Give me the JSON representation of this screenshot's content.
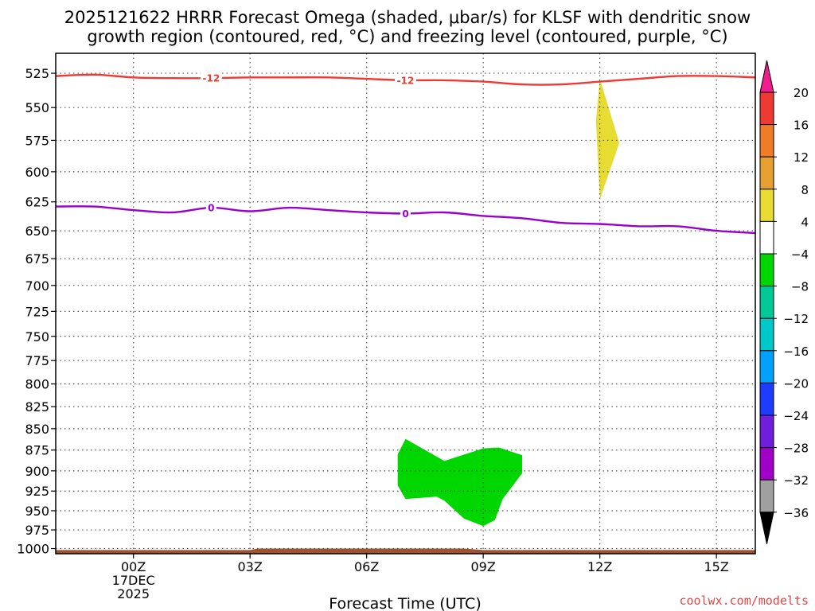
{
  "title_lines": [
    "2025121622 HRRR Forecast Omega (shaded, μbar/s) for KLSF with dendritic snow",
    "growth region (contoured, red, °C) and freezing level (contoured, purple, °C)"
  ],
  "credit": "coolwx.com/modelts",
  "colors": {
    "temp_contour": "#ee3a32",
    "freezing_contour": "#9900cc",
    "ground": "#a0522d",
    "neg_omega": "#00d600",
    "pos_omega": "#e6dc32"
  },
  "chart_data": {
    "type": "contour",
    "xlabel": "Forecast Time (UTC)",
    "x_range_hours": [
      -2,
      16
    ],
    "y_range_hpa": [
      1007,
      511
    ],
    "y_scale": "log-pressure",
    "grid": true,
    "x_ticks": [
      {
        "hour": 0,
        "lines": [
          "00Z",
          "17DEC",
          "2025"
        ]
      },
      {
        "hour": 3,
        "lines": [
          "03Z"
        ]
      },
      {
        "hour": 6,
        "lines": [
          "06Z"
        ]
      },
      {
        "hour": 9,
        "lines": [
          "09Z"
        ]
      },
      {
        "hour": 12,
        "lines": [
          "12Z"
        ]
      },
      {
        "hour": 15,
        "lines": [
          "15Z"
        ]
      }
    ],
    "y_ticks": [
      525,
      550,
      575,
      600,
      625,
      650,
      675,
      700,
      725,
      750,
      775,
      800,
      825,
      850,
      875,
      900,
      925,
      950,
      975,
      1000
    ],
    "contours": [
      {
        "name": "-12 °C isotherm",
        "level_label": "-12",
        "color_key": "temp_contour",
        "points": [
          [
            -2,
            527
          ],
          [
            -1,
            526
          ],
          [
            0,
            528
          ],
          [
            1,
            528.5
          ],
          [
            2,
            528.5
          ],
          [
            3,
            528
          ],
          [
            4,
            528
          ],
          [
            5,
            528
          ],
          [
            6,
            529
          ],
          [
            7,
            530
          ],
          [
            8,
            530
          ],
          [
            9,
            531
          ],
          [
            10,
            533
          ],
          [
            11,
            533
          ],
          [
            12,
            531
          ],
          [
            13,
            529
          ],
          [
            14,
            527
          ],
          [
            15,
            527
          ],
          [
            16,
            528
          ]
        ],
        "label_hours": [
          2,
          7
        ]
      },
      {
        "name": "0 °C freezing level",
        "level_label": "0",
        "color_key": "freezing_contour",
        "points": [
          [
            -2,
            629
          ],
          [
            -1,
            629
          ],
          [
            0,
            632
          ],
          [
            1,
            634
          ],
          [
            2,
            630
          ],
          [
            3,
            633
          ],
          [
            4,
            630
          ],
          [
            5,
            632
          ],
          [
            6,
            634
          ],
          [
            7,
            635
          ],
          [
            8,
            634
          ],
          [
            9,
            637
          ],
          [
            10,
            639
          ],
          [
            11,
            643
          ],
          [
            12,
            644
          ],
          [
            13,
            646
          ],
          [
            14,
            646
          ],
          [
            15,
            650
          ],
          [
            16,
            652
          ]
        ],
        "label_hours": [
          2,
          7
        ]
      }
    ],
    "shaded_regions": [
      {
        "value_bin": "-8 to -4",
        "color_key": "neg_omega",
        "polygon": [
          [
            7,
            862
          ],
          [
            8,
            888
          ],
          [
            9,
            873
          ],
          [
            9.4,
            872
          ],
          [
            10,
            881
          ],
          [
            10,
            903
          ],
          [
            9.5,
            935
          ],
          [
            9.3,
            962
          ],
          [
            9,
            970
          ],
          [
            8.5,
            960
          ],
          [
            8,
            937
          ],
          [
            7.8,
            932
          ],
          [
            7,
            935
          ],
          [
            6.8,
            918
          ],
          [
            6.8,
            880
          ]
        ]
      },
      {
        "value_bin": "4 to 8",
        "color_key": "pos_omega",
        "polygon": [
          [
            12,
            529
          ],
          [
            12.5,
            577
          ],
          [
            12,
            623
          ],
          [
            11.9,
            560
          ]
        ]
      }
    ],
    "ground_layer": [
      [
        -2,
        1007
      ],
      [
        -2,
        1002
      ],
      [
        3,
        1002
      ],
      [
        3.2,
        1000
      ],
      [
        8.5,
        1000
      ],
      [
        9,
        1002
      ],
      [
        16,
        1002
      ],
      [
        16,
        1007
      ]
    ],
    "colorbar": {
      "tick_labels": [
        "20",
        "16",
        "12",
        "8",
        "4",
        "−4",
        "−8",
        "−12",
        "−16",
        "−20",
        "−24",
        "−28",
        "−32",
        "−36"
      ],
      "bins": [
        {
          "range": "16 to 20",
          "color": "#ee3a32"
        },
        {
          "range": "12 to 16",
          "color": "#f07c28"
        },
        {
          "range": "8 to 12",
          "color": "#e6a032"
        },
        {
          "range": "4 to 8",
          "color": "#e6dc32"
        },
        {
          "range": "-4 to 4",
          "color": "#ffffff"
        },
        {
          "range": "-8 to -4",
          "color": "#00d600"
        },
        {
          "range": "-12 to -8",
          "color": "#00c896"
        },
        {
          "range": "-16 to -12",
          "color": "#00c8c8"
        },
        {
          "range": "-20 to -16",
          "color": "#00a0ff"
        },
        {
          "range": "-24 to -20",
          "color": "#1e3cff"
        },
        {
          "range": "-28 to -24",
          "color": "#6e1edc"
        },
        {
          "range": "-32 to -28",
          "color": "#a000c8"
        },
        {
          "range": "-36 to -32",
          "color": "#a0a0a0"
        }
      ],
      "over_color": "#f01e8c",
      "under_color": "#000000"
    }
  }
}
